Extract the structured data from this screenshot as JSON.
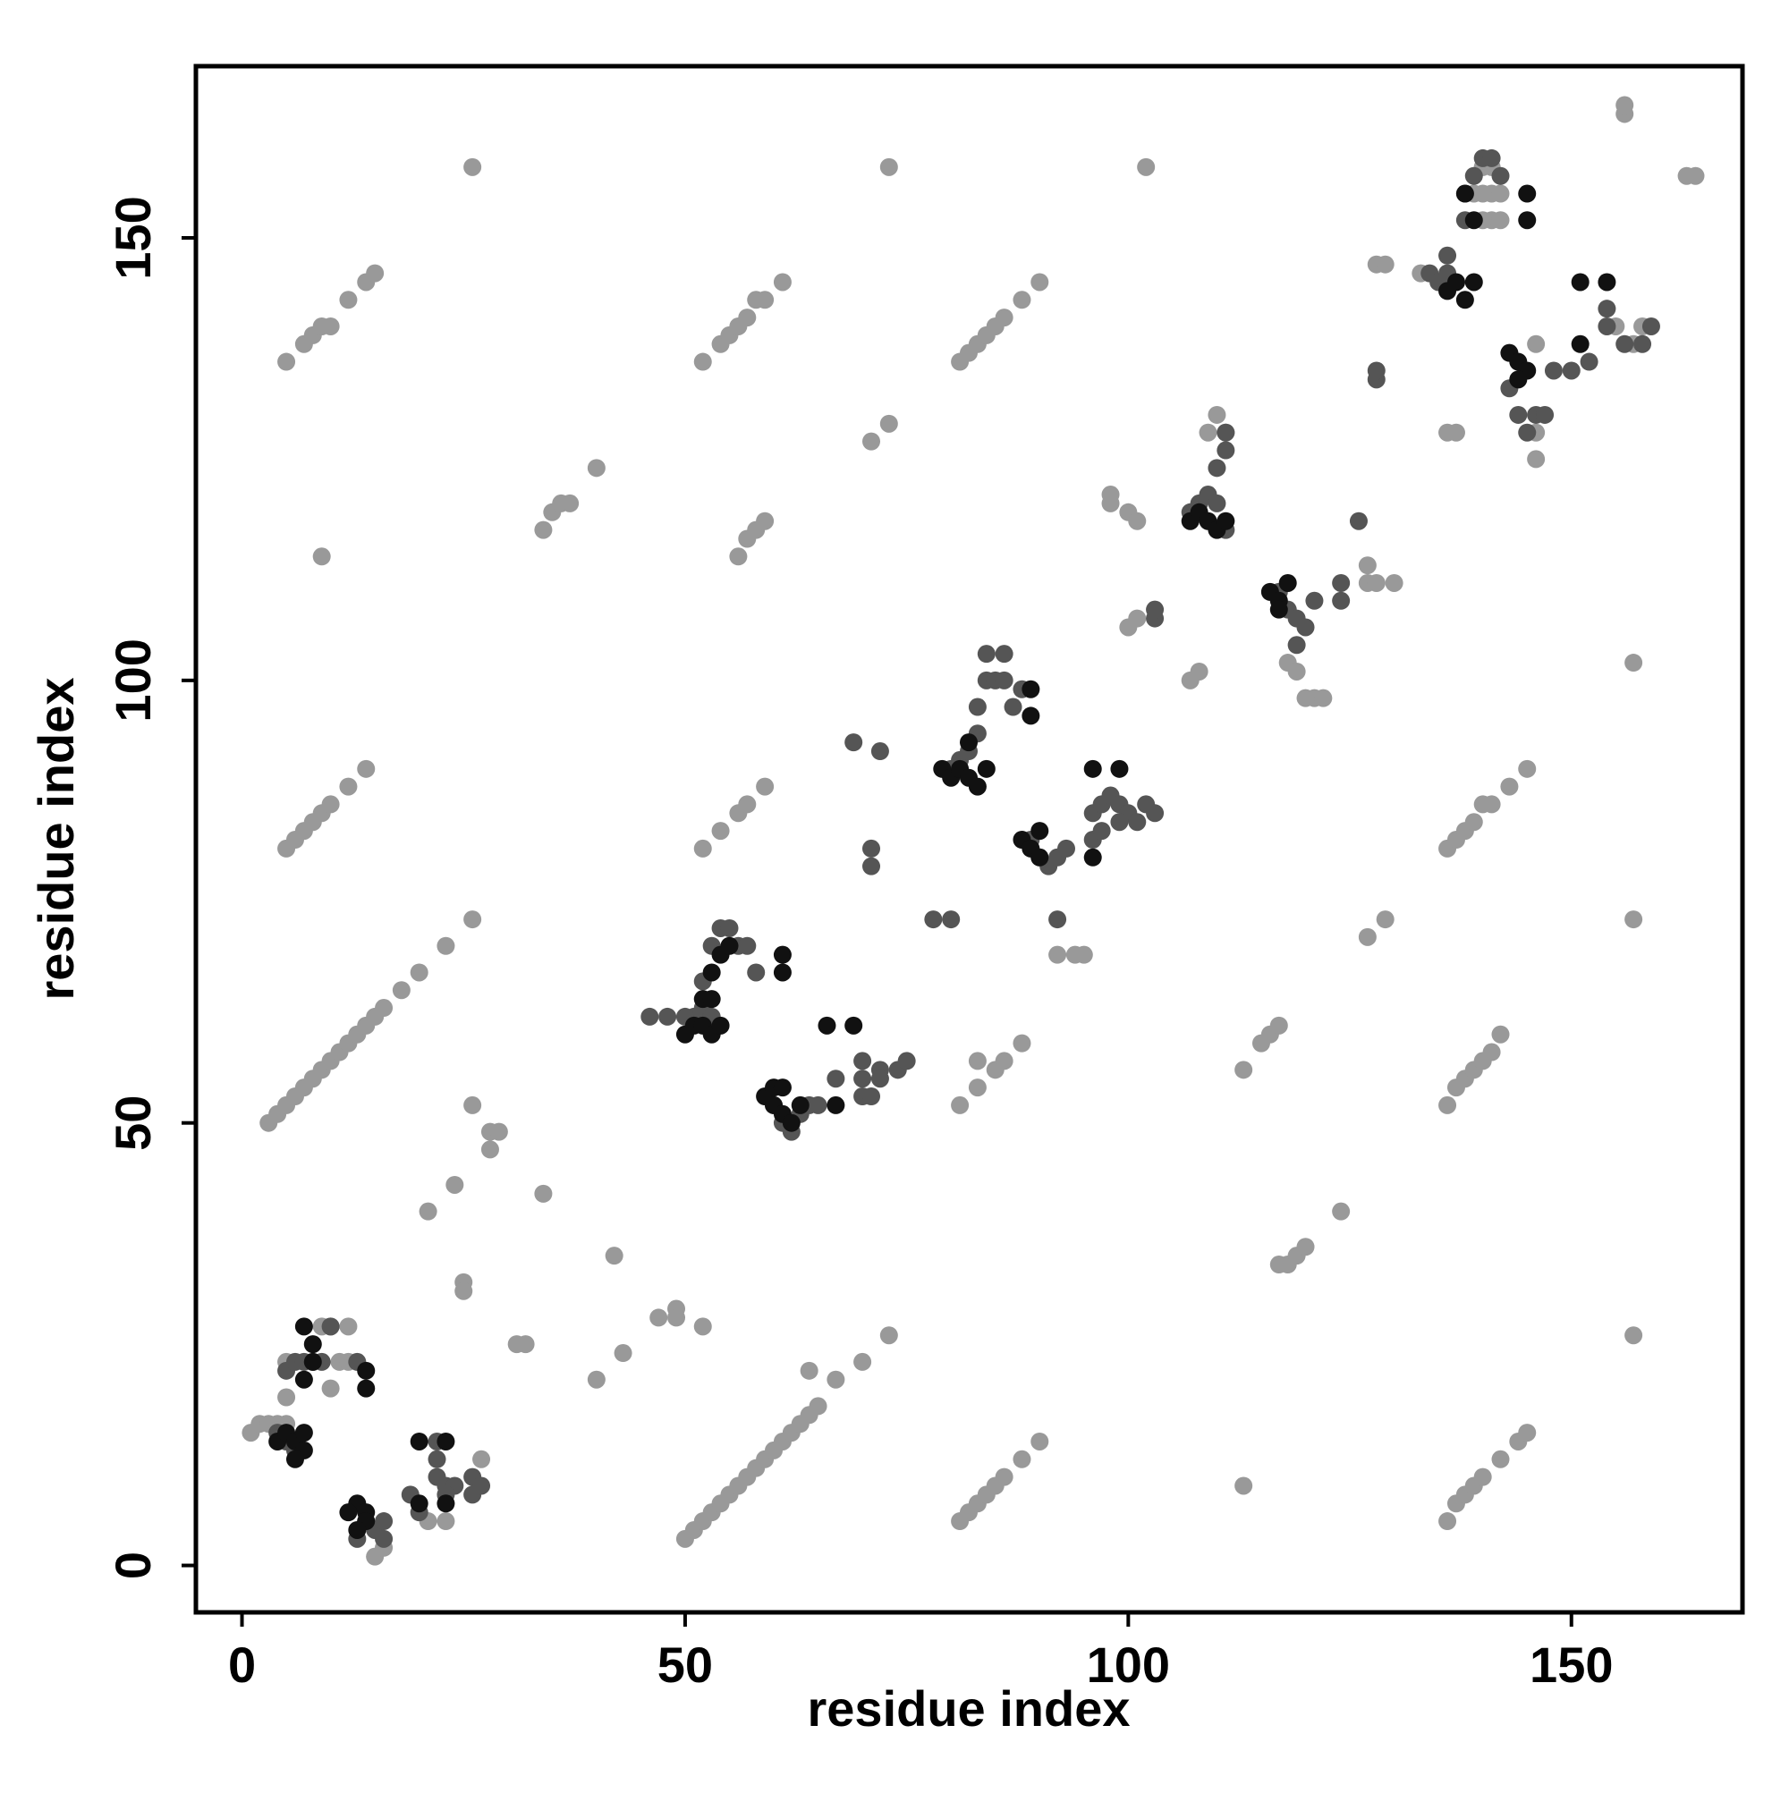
{
  "chart_data": {
    "type": "scatter",
    "x_label": "residue index",
    "y_label": "residue index",
    "xlim": [
      -5.2,
      169.3
    ],
    "ylim": [
      -5.3,
      169.4
    ],
    "xticks": [
      0,
      50,
      100,
      150
    ],
    "yticks": [
      0,
      50,
      100,
      150
    ],
    "grid": false,
    "series": [
      {
        "color": "#999999",
        "x": [
          5,
          7,
          8,
          9,
          10,
          12,
          14,
          15,
          52,
          54,
          55,
          56,
          57,
          58,
          59,
          61,
          81,
          82,
          83,
          84,
          85,
          86,
          88,
          90,
          26,
          73,
          102,
          156,
          156,
          163,
          164,
          34,
          35,
          36,
          37,
          40,
          56,
          57,
          58,
          59,
          9,
          71,
          73,
          5,
          6,
          7,
          8,
          9,
          10,
          12,
          14,
          3,
          4,
          5,
          6,
          7,
          8,
          9,
          10,
          11,
          12,
          13,
          14,
          15,
          16,
          18,
          20,
          23,
          26,
          52,
          54,
          56,
          57,
          59,
          26,
          28,
          28,
          29,
          34,
          21,
          24,
          25,
          25,
          31,
          32,
          40,
          42,
          43,
          47,
          49,
          49,
          52,
          50,
          51,
          52,
          53,
          54,
          55,
          56,
          57,
          58,
          59,
          60,
          61,
          62,
          63,
          64,
          65,
          67,
          70,
          73,
          64,
          81,
          82,
          83,
          84,
          85,
          86,
          88,
          90,
          113,
          136,
          137,
          138,
          139,
          140,
          142,
          144,
          145,
          136,
          137,
          138,
          139,
          140,
          141,
          142,
          136,
          137,
          138,
          139,
          140,
          141,
          143,
          145,
          81,
          83,
          83,
          85,
          86,
          88,
          113,
          115,
          116,
          117,
          127,
          129,
          157,
          157,
          157,
          117,
          118,
          119,
          120,
          124,
          107,
          108,
          100,
          101,
          98,
          98,
          100,
          101,
          127,
          127,
          130,
          128,
          109,
          111,
          110,
          118,
          119,
          120,
          121,
          122,
          146,
          146,
          136,
          137,
          94,
          92,
          95,
          1,
          2,
          3,
          4,
          5,
          5,
          5,
          9,
          10,
          12,
          10,
          11,
          12,
          27,
          23,
          21,
          15,
          16,
          140,
          141,
          139,
          140,
          141,
          142,
          141,
          142,
          140,
          128,
          129,
          133,
          146,
          155,
          157,
          158
        ],
        "y": [
          136,
          138,
          139,
          140,
          140,
          143,
          145,
          146,
          136,
          138,
          139,
          140,
          141,
          143,
          143,
          145,
          136,
          137,
          138,
          139,
          140,
          141,
          143,
          145,
          158,
          158,
          158,
          164,
          165,
          157,
          157,
          117,
          119,
          120,
          120,
          124,
          114,
          116,
          117,
          118,
          114,
          127,
          129,
          81,
          82,
          83,
          84,
          85,
          86,
          88,
          90,
          50,
          51,
          52,
          53,
          54,
          55,
          56,
          57,
          58,
          59,
          60,
          61,
          62,
          63,
          65,
          67,
          70,
          73,
          81,
          83,
          85,
          86,
          88,
          52,
          47,
          49,
          49,
          42,
          40,
          43,
          32,
          31,
          25,
          25,
          21,
          35,
          24,
          28,
          29,
          28,
          27,
          3,
          4,
          5,
          6,
          7,
          8,
          9,
          10,
          11,
          12,
          13,
          14,
          15,
          16,
          17,
          18,
          21,
          23,
          26,
          22,
          5,
          6,
          7,
          8,
          9,
          10,
          12,
          14,
          9,
          5,
          7,
          8,
          9,
          10,
          12,
          14,
          15,
          52,
          54,
          55,
          56,
          57,
          58,
          60,
          81,
          82,
          83,
          84,
          86,
          86,
          88,
          90,
          52,
          54,
          57,
          56,
          57,
          59,
          56,
          59,
          60,
          61,
          71,
          73,
          73,
          26,
          102,
          34,
          34,
          35,
          36,
          40,
          100,
          101,
          106,
          107,
          120,
          121,
          119,
          118,
          111,
          113,
          111,
          111,
          128,
          128,
          130,
          102,
          101,
          98,
          98,
          98,
          125,
          128,
          128,
          128,
          69,
          69,
          69,
          15,
          16,
          16,
          16,
          16,
          19,
          23,
          27,
          27,
          27,
          20,
          23,
          23,
          12,
          5,
          5,
          1,
          2,
          158,
          158,
          155,
          155,
          155,
          155,
          152,
          152,
          152,
          147,
          147,
          146,
          138,
          140,
          138,
          140
        ]
      },
      {
        "color": "#555555",
        "x": [
          4,
          5,
          6,
          5,
          6,
          7,
          8,
          9,
          10,
          13,
          22,
          22,
          22,
          23,
          24,
          26,
          26,
          27,
          19,
          20,
          23,
          14,
          15,
          16,
          16,
          13,
          53,
          54,
          55,
          56,
          57,
          58,
          52,
          52,
          51,
          50,
          53,
          46,
          48,
          60,
          61,
          62,
          63,
          64,
          65,
          67,
          70,
          72,
          70,
          70,
          71,
          72,
          74,
          75,
          80,
          81,
          82,
          83,
          83,
          84,
          85,
          86,
          84,
          86,
          88,
          87,
          72,
          69,
          71,
          71,
          89,
          90,
          91,
          92,
          93,
          96,
          96,
          97,
          98,
          99,
          100,
          101,
          102,
          103,
          97,
          99,
          107,
          108,
          109,
          110,
          111,
          110,
          111,
          111,
          103,
          103,
          117,
          118,
          119,
          120,
          119,
          121,
          124,
          124,
          126,
          134,
          135,
          136,
          136,
          138,
          138,
          139,
          140,
          141,
          142,
          143,
          144,
          145,
          146,
          147,
          148,
          150,
          152,
          154,
          154,
          156,
          158,
          159,
          78,
          80,
          92,
          128,
          128
        ],
        "y": [
          15,
          14,
          13,
          22,
          23,
          23,
          23,
          23,
          27,
          23,
          14,
          12,
          10,
          9,
          9,
          10,
          8,
          9,
          8,
          6,
          8,
          5,
          4,
          3,
          5,
          3,
          70,
          72,
          72,
          70,
          70,
          67,
          66,
          63,
          62,
          62,
          62,
          62,
          62,
          52,
          50,
          49,
          51,
          52,
          52,
          55,
          57,
          56,
          55,
          53,
          53,
          55,
          56,
          57,
          90,
          91,
          92,
          94,
          97,
          100,
          100,
          100,
          103,
          103,
          99,
          97,
          92,
          93,
          79,
          81,
          82,
          80,
          79,
          80,
          81,
          82,
          85,
          86,
          87,
          86,
          85,
          84,
          86,
          85,
          83,
          84,
          119,
          120,
          121,
          120,
          117,
          124,
          126,
          128,
          107,
          108,
          110,
          108,
          107,
          106,
          104,
          109,
          111,
          109,
          118,
          146,
          145,
          148,
          146,
          152,
          155,
          157,
          159,
          159,
          157,
          133,
          130,
          128,
          130,
          130,
          135,
          135,
          136,
          140,
          142,
          138,
          138,
          140,
          73,
          73,
          73,
          134,
          135
        ]
      },
      {
        "color": "#111111",
        "x": [
          4,
          5,
          6,
          7,
          6,
          7,
          7,
          8,
          7,
          8,
          14,
          14,
          20,
          23,
          20,
          23,
          13,
          14,
          14,
          12,
          13,
          50,
          51,
          52,
          53,
          54,
          52,
          53,
          54,
          55,
          61,
          61,
          53,
          59,
          60,
          61,
          62,
          60,
          61,
          63,
          67,
          66,
          69,
          79,
          80,
          81,
          82,
          83,
          84,
          82,
          89,
          89,
          88,
          89,
          90,
          90,
          96,
          96,
          99,
          107,
          108,
          109,
          110,
          111,
          116,
          117,
          118,
          117,
          136,
          137,
          138,
          139,
          138,
          139,
          145,
          145,
          143,
          144,
          145,
          144,
          151,
          154,
          151
        ],
        "y": [
          14,
          15,
          14,
          13,
          12,
          15,
          27,
          25,
          21,
          23,
          22,
          20,
          14,
          14,
          7,
          7,
          7,
          6,
          5,
          6,
          4,
          60,
          61,
          61,
          60,
          61,
          64,
          64,
          69,
          70,
          69,
          67,
          67,
          53,
          52,
          51,
          50,
          54,
          54,
          52,
          52,
          61,
          61,
          90,
          89,
          90,
          89,
          88,
          90,
          93,
          99,
          96,
          82,
          81,
          83,
          80,
          80,
          90,
          90,
          118,
          119,
          118,
          117,
          118,
          110,
          109,
          111,
          108,
          144,
          145,
          143,
          145,
          155,
          152,
          155,
          152,
          137,
          136,
          135,
          134,
          145,
          145,
          138
        ]
      }
    ]
  }
}
